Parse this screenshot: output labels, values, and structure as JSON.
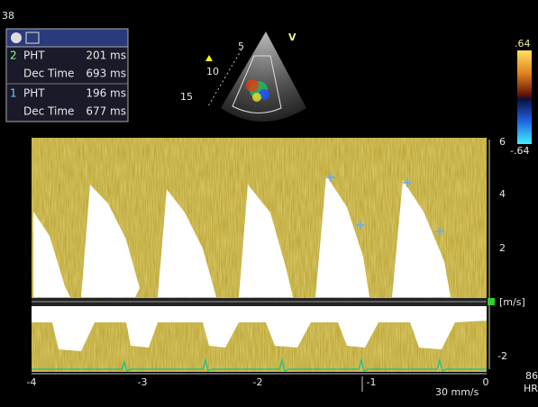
{
  "frame_number": "38",
  "measurements": [
    {
      "index": "2",
      "rows": [
        {
          "label": "PHT",
          "value": "201 ms"
        },
        {
          "label": "Dec Time",
          "value": "693 ms"
        }
      ]
    },
    {
      "index": "1",
      "rows": [
        {
          "label": "PHT",
          "value": "196 ms"
        },
        {
          "label": "Dec Time",
          "value": "677 ms"
        }
      ]
    }
  ],
  "sector": {
    "depth_labels": [
      "5",
      "10",
      "15"
    ],
    "mode": "V"
  },
  "color_scale": {
    "max": ".64",
    "min": "-.64"
  },
  "velocity_axis": {
    "ticks": [
      "6",
      "4",
      "2",
      "-2"
    ],
    "unit": "[m/s]"
  },
  "time_axis": {
    "ticks": [
      "-4",
      "-3",
      "-2",
      "-1",
      "0"
    ]
  },
  "sweep_speed": "30 mm/s",
  "heart_rate": {
    "value": "86",
    "label": "HR"
  }
}
